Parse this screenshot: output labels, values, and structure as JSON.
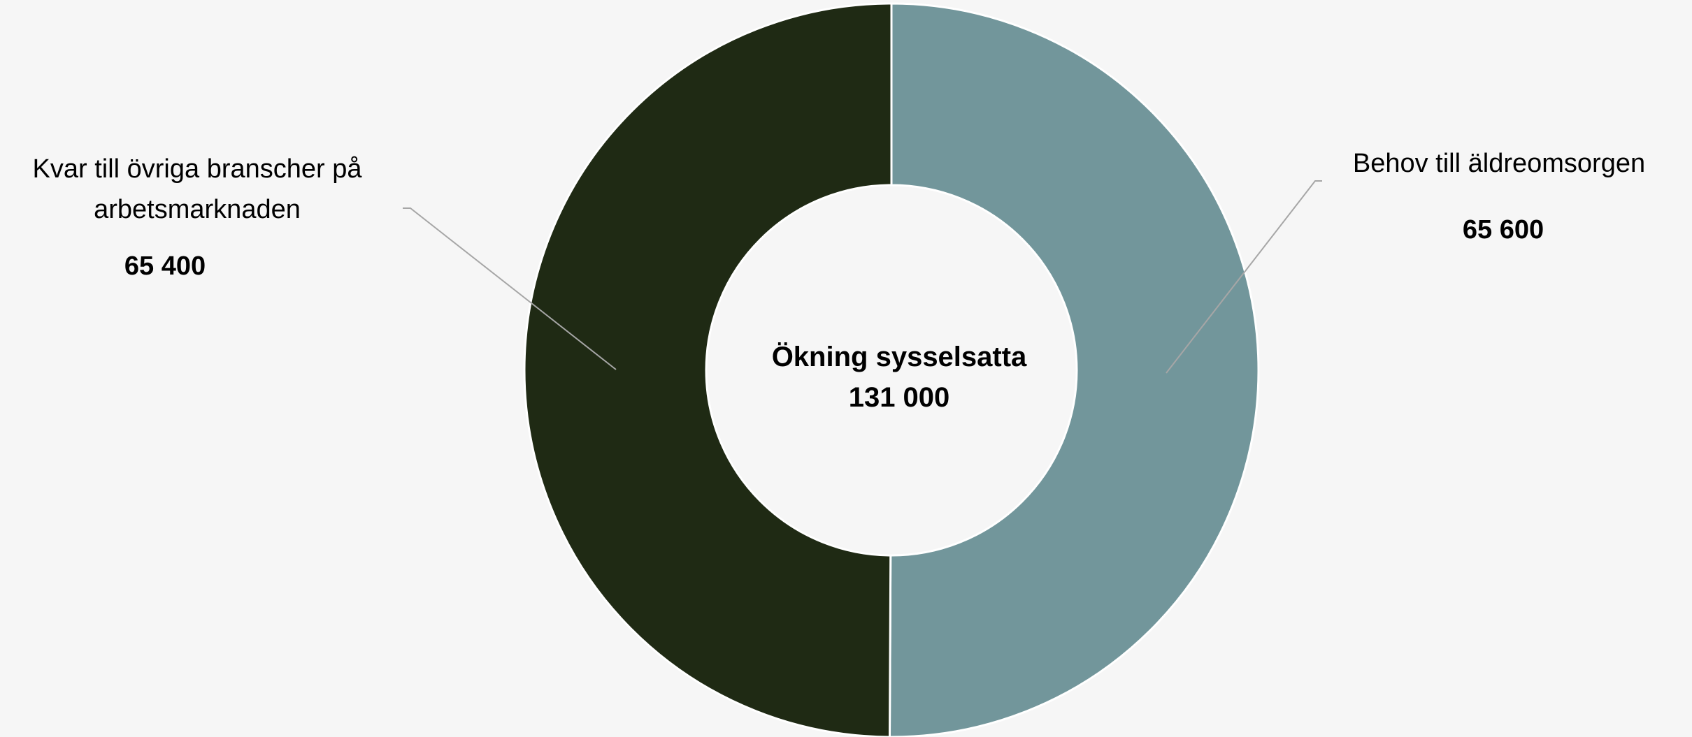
{
  "chart_data": {
    "type": "pie",
    "variant": "donut",
    "title": "",
    "center_label": {
      "title": "Ökning sysselsatta",
      "value": "131 000"
    },
    "slices": [
      {
        "label": "Behov till äldreomsorgen",
        "value": 65600,
        "value_label": "65 600",
        "color": "#72969b"
      },
      {
        "label_lines": [
          "Kvar till övriga branscher på",
          "arbetsmarknaden"
        ],
        "value": 65400,
        "value_label": "65 400",
        "color": "#1f2a14"
      }
    ],
    "start_angle": "top (12 o'clock)",
    "direction": "clockwise",
    "slice_border_color": "#ffffff",
    "background": "#f6f6f6",
    "legend": "none"
  }
}
